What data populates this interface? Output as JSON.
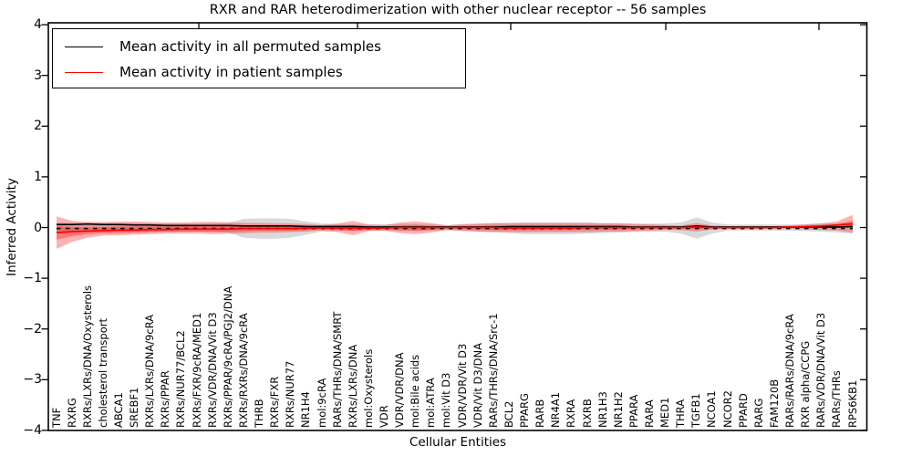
{
  "figure": {
    "title": "RXR and RAR heterodimerization with other nuclear receptor -- 56 samples",
    "xlabel": "Cellular Entities",
    "ylabel": "Inferred Activity"
  },
  "legend": {
    "entries": [
      {
        "label": "Mean activity in all permuted samples",
        "color": "#000000"
      },
      {
        "label": "Mean activity in patient samples",
        "color": "#ff0000"
      }
    ],
    "position": "upper left"
  },
  "chart_data": {
    "type": "line",
    "title": "RXR and RAR heterodimerization with other nuclear receptor -- 56 samples",
    "xlabel": "Cellular Entities",
    "ylabel": "Inferred Activity",
    "ylim": [
      -4,
      4
    ],
    "grid": false,
    "ytick_labels": [
      "4",
      "3",
      "2",
      "1",
      "0",
      "−1",
      "−2",
      "−3",
      "−4"
    ],
    "yticks": [
      4,
      3,
      2,
      1,
      0,
      -1,
      -2,
      -3,
      -4
    ],
    "categories": [
      "TNF",
      "RXRG",
      "RXRs/LXRs/DNA/Oxysterols",
      "cholesterol transport",
      "ABCA1",
      "SREBF1",
      "RXRs/LXRs/DNA/9cRA",
      "RXRs/PPAR",
      "RXRs/NUR77/BCL2",
      "RXRs/FXR/9cRA/MED1",
      "RXRs/VDR/DNA/Vit D3",
      "RXRs/PPAR/9cRA/PGJ2/DNA",
      "RXRs/RXRs/DNA/9cRA",
      "THRB",
      "RXRs/FXR",
      "RXRs/NUR77",
      "NR1H4",
      "mol:9cRA",
      "RARs/THRs/DNA/SMRT",
      "RXRs/LXRs/DNA",
      "mol:Oxysterols",
      "VDR",
      "VDR/VDR/DNA",
      "mol:Bile acids",
      "mol:ATRA",
      "mol:Vit D3",
      "VDR/VDR/Vit D3",
      "VDR/Vit D3/DNA",
      "RARs/THRs/DNA/Src-1",
      "BCL2",
      "PPARG",
      "RARB",
      "NR4A1",
      "RXRA",
      "RXRB",
      "NR1H3",
      "NR1H2",
      "PPARA",
      "RARA",
      "MED1",
      "THRA",
      "TGFB1",
      "NCOA1",
      "NCOR2",
      "PPARD",
      "RARG",
      "FAM120B",
      "RARs/RARs/DNA/9cRA",
      "RXR alpha/CCPG",
      "RARs/VDR/DNA/Vit D3",
      "RARs/THRs",
      "RPS6KB1"
    ],
    "series": [
      {
        "name": "Mean activity in all permuted samples",
        "color": "#000000",
        "style": "solid",
        "values": [
          0.06,
          0.06,
          0.07,
          0.06,
          0.06,
          0.05,
          0.05,
          0.04,
          0.04,
          0.04,
          0.04,
          0.04,
          0.03,
          0.03,
          0.03,
          0.03,
          0.02,
          0.02,
          0.02,
          0.02,
          0.01,
          0.01,
          0.01,
          0.01,
          0.01,
          0.01,
          0.01,
          0.01,
          0.01,
          0.02,
          0.02,
          0.02,
          0.02,
          0.02,
          0.02,
          0.02,
          0.02,
          0.01,
          0.01,
          0.01,
          0.01,
          0.03,
          0.01,
          0.01,
          0.01,
          0.01,
          0.01,
          0.01,
          0.01,
          0.01,
          0.01,
          0.02
        ]
      },
      {
        "name": "Mean activity in patient samples",
        "color": "#ff0000",
        "style": "solid",
        "values": [
          -0.1,
          -0.08,
          -0.07,
          -0.06,
          -0.05,
          -0.05,
          -0.04,
          -0.04,
          -0.03,
          -0.03,
          -0.03,
          -0.03,
          -0.02,
          -0.02,
          -0.02,
          -0.02,
          -0.01,
          -0.01,
          -0.01,
          -0.01,
          -0.01,
          -0.01,
          0,
          0,
          0,
          0,
          0,
          0,
          0,
          -0.01,
          -0.01,
          -0.01,
          -0.01,
          -0.01,
          0,
          0,
          0,
          0,
          0,
          0,
          0,
          0.01,
          0,
          0,
          0,
          0,
          0,
          0.01,
          0.02,
          0.03,
          0.05,
          0.07
        ]
      }
    ],
    "zero_line": {
      "style": "dotted",
      "color": "#000000",
      "value": -0.02
    },
    "bands": [
      {
        "name": "permuted-samples-range",
        "color": "#808080",
        "opacity": 0.3,
        "upper": [
          0.1,
          0.09,
          0.08,
          0.08,
          0.08,
          0.08,
          0.08,
          0.08,
          0.08,
          0.08,
          0.09,
          0.1,
          0.17,
          0.18,
          0.18,
          0.17,
          0.12,
          0.08,
          0.07,
          0.06,
          0.06,
          0.06,
          0.07,
          0.07,
          0.06,
          0.05,
          0.06,
          0.07,
          0.08,
          0.09,
          0.1,
          0.1,
          0.1,
          0.1,
          0.1,
          0.09,
          0.09,
          0.08,
          0.08,
          0.08,
          0.1,
          0.2,
          0.1,
          0.06,
          0.06,
          0.06,
          0.06,
          0.06,
          0.07,
          0.08,
          0.09,
          0.1
        ],
        "lower": [
          -0.12,
          -0.1,
          -0.09,
          -0.08,
          -0.08,
          -0.08,
          -0.08,
          -0.08,
          -0.08,
          -0.08,
          -0.09,
          -0.1,
          -0.2,
          -0.22,
          -0.22,
          -0.2,
          -0.14,
          -0.08,
          -0.07,
          -0.06,
          -0.06,
          -0.06,
          -0.07,
          -0.07,
          -0.06,
          -0.05,
          -0.06,
          -0.08,
          -0.09,
          -0.11,
          -0.13,
          -0.13,
          -0.13,
          -0.13,
          -0.12,
          -0.11,
          -0.1,
          -0.09,
          -0.08,
          -0.08,
          -0.12,
          -0.22,
          -0.12,
          -0.06,
          -0.06,
          -0.06,
          -0.06,
          -0.06,
          -0.07,
          -0.08,
          -0.1,
          -0.12
        ]
      },
      {
        "name": "patient-samples-range-outer",
        "color": "#ff0000",
        "opacity": 0.3,
        "upper": [
          0.22,
          0.13,
          0.11,
          0.11,
          0.12,
          0.12,
          0.11,
          0.1,
          0.1,
          0.11,
          0.11,
          0.1,
          0.09,
          0.09,
          0.08,
          0.08,
          0.07,
          0.05,
          0.08,
          0.13,
          0.06,
          0.05,
          0.1,
          0.12,
          0.09,
          0.04,
          0.07,
          0.08,
          0.09,
          0.09,
          0.09,
          0.09,
          0.09,
          0.09,
          0.09,
          0.08,
          0.08,
          0.07,
          0.06,
          0.05,
          0.04,
          0.09,
          0.04,
          0.03,
          0.03,
          0.03,
          0.03,
          0.04,
          0.06,
          0.08,
          0.12,
          0.25
        ],
        "lower": [
          -0.42,
          -0.28,
          -0.2,
          -0.16,
          -0.15,
          -0.14,
          -0.13,
          -0.12,
          -0.12,
          -0.12,
          -0.13,
          -0.12,
          -0.11,
          -0.1,
          -0.1,
          -0.09,
          -0.08,
          -0.06,
          -0.09,
          -0.15,
          -0.07,
          -0.06,
          -0.11,
          -0.13,
          -0.1,
          -0.05,
          -0.07,
          -0.08,
          -0.09,
          -0.09,
          -0.09,
          -0.09,
          -0.09,
          -0.09,
          -0.09,
          -0.08,
          -0.08,
          -0.07,
          -0.06,
          -0.05,
          -0.05,
          -0.08,
          -0.04,
          -0.03,
          -0.03,
          -0.03,
          -0.03,
          -0.03,
          -0.04,
          -0.05,
          -0.06,
          -0.1
        ]
      },
      {
        "name": "patient-samples-range-inner",
        "color": "#ff0000",
        "opacity": 0.32,
        "upper": [
          0.03,
          0.01,
          0.0,
          0.01,
          0.02,
          0.02,
          0.02,
          0.02,
          0.02,
          0.03,
          0.03,
          0.03,
          0.02,
          0.02,
          0.02,
          0.02,
          0.02,
          0.01,
          0.03,
          0.05,
          0.02,
          0.01,
          0.04,
          0.05,
          0.03,
          0.01,
          0.03,
          0.03,
          0.04,
          0.03,
          0.03,
          0.03,
          0.03,
          0.03,
          0.03,
          0.03,
          0.03,
          0.02,
          0.02,
          0.02,
          0.01,
          0.04,
          0.01,
          0.01,
          0.01,
          0.01,
          0.01,
          0.02,
          0.03,
          0.04,
          0.06,
          0.14
        ],
        "lower": [
          -0.24,
          -0.17,
          -0.13,
          -0.11,
          -0.11,
          -0.1,
          -0.09,
          -0.08,
          -0.08,
          -0.08,
          -0.08,
          -0.08,
          -0.07,
          -0.06,
          -0.06,
          -0.06,
          -0.05,
          -0.03,
          -0.05,
          -0.07,
          -0.04,
          -0.03,
          -0.05,
          -0.06,
          -0.05,
          -0.02,
          -0.03,
          -0.04,
          -0.05,
          -0.05,
          -0.05,
          -0.05,
          -0.05,
          -0.05,
          -0.04,
          -0.04,
          -0.04,
          -0.03,
          -0.03,
          -0.03,
          -0.02,
          -0.03,
          -0.02,
          -0.02,
          -0.02,
          -0.02,
          -0.02,
          -0.01,
          -0.01,
          -0.01,
          -0.01,
          0.0
        ]
      }
    ]
  }
}
